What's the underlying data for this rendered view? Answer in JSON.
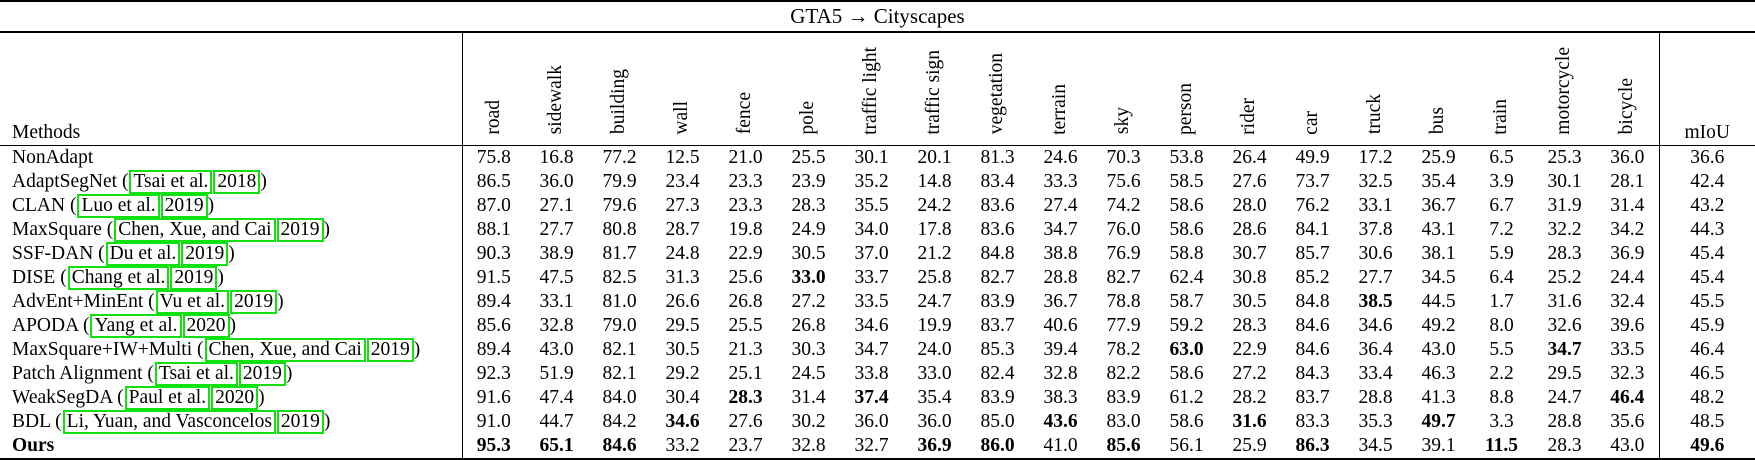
{
  "title": "GTA5 → Cityscapes",
  "colors": {
    "link_box": "#11e011"
  },
  "table": {
    "methods_header": "Methods",
    "miou_header": "mIoU",
    "class_headers": [
      "road",
      "sidewalk",
      "building",
      "wall",
      "fence",
      "pole",
      "traffic light",
      "traffic sign",
      "vegetation",
      "terrain",
      "sky",
      "person",
      "rider",
      "car",
      "truck",
      "bus",
      "train",
      "motorcycle",
      "bicycle"
    ],
    "rows": [
      {
        "method": {
          "name": "NonAdapt"
        },
        "values": [
          "75.8",
          "16.8",
          "77.2",
          "12.5",
          "21.0",
          "25.5",
          "30.1",
          "20.1",
          "81.3",
          "24.6",
          "70.3",
          "53.8",
          "26.4",
          "49.9",
          "17.2",
          "25.9",
          "6.5",
          "25.3",
          "36.0"
        ],
        "bold": [],
        "miou": "36.6",
        "miou_bold": false
      },
      {
        "method": {
          "name": "AdaptSegNet",
          "cite": "Tsai et al.",
          "year": "2018"
        },
        "values": [
          "86.5",
          "36.0",
          "79.9",
          "23.4",
          "23.3",
          "23.9",
          "35.2",
          "14.8",
          "83.4",
          "33.3",
          "75.6",
          "58.5",
          "27.6",
          "73.7",
          "32.5",
          "35.4",
          "3.9",
          "30.1",
          "28.1"
        ],
        "bold": [],
        "miou": "42.4",
        "miou_bold": false
      },
      {
        "method": {
          "name": "CLAN",
          "cite": "Luo et al.",
          "year": "2019"
        },
        "values": [
          "87.0",
          "27.1",
          "79.6",
          "27.3",
          "23.3",
          "28.3",
          "35.5",
          "24.2",
          "83.6",
          "27.4",
          "74.2",
          "58.6",
          "28.0",
          "76.2",
          "33.1",
          "36.7",
          "6.7",
          "31.9",
          "31.4"
        ],
        "bold": [],
        "miou": "43.2",
        "miou_bold": false
      },
      {
        "method": {
          "name": "MaxSquare",
          "cite": "Chen, Xue, and Cai",
          "year": "2019"
        },
        "values": [
          "88.1",
          "27.7",
          "80.8",
          "28.7",
          "19.8",
          "24.9",
          "34.0",
          "17.8",
          "83.6",
          "34.7",
          "76.0",
          "58.6",
          "28.6",
          "84.1",
          "37.8",
          "43.1",
          "7.2",
          "32.2",
          "34.2"
        ],
        "bold": [],
        "miou": "44.3",
        "miou_bold": false
      },
      {
        "method": {
          "name": "SSF-DAN",
          "cite": "Du et al.",
          "year": "2019"
        },
        "values": [
          "90.3",
          "38.9",
          "81.7",
          "24.8",
          "22.9",
          "30.5",
          "37.0",
          "21.2",
          "84.8",
          "38.8",
          "76.9",
          "58.8",
          "30.7",
          "85.7",
          "30.6",
          "38.1",
          "5.9",
          "28.3",
          "36.9"
        ],
        "bold": [],
        "miou": "45.4",
        "miou_bold": false
      },
      {
        "method": {
          "name": "DISE",
          "cite": "Chang et al.",
          "year": "2019"
        },
        "values": [
          "91.5",
          "47.5",
          "82.5",
          "31.3",
          "25.6",
          "33.0",
          "33.7",
          "25.8",
          "82.7",
          "28.8",
          "82.7",
          "62.4",
          "30.8",
          "85.2",
          "27.7",
          "34.5",
          "6.4",
          "25.2",
          "24.4"
        ],
        "bold": [
          5
        ],
        "miou": "45.4",
        "miou_bold": false
      },
      {
        "method": {
          "name": "AdvEnt+MinEnt",
          "cite": "Vu et al.",
          "year": "2019"
        },
        "values": [
          "89.4",
          "33.1",
          "81.0",
          "26.6",
          "26.8",
          "27.2",
          "33.5",
          "24.7",
          "83.9",
          "36.7",
          "78.8",
          "58.7",
          "30.5",
          "84.8",
          "38.5",
          "44.5",
          "1.7",
          "31.6",
          "32.4"
        ],
        "bold": [
          14
        ],
        "miou": "45.5",
        "miou_bold": false
      },
      {
        "method": {
          "name": "APODA",
          "cite": "Yang et al.",
          "year": "2020"
        },
        "values": [
          "85.6",
          "32.8",
          "79.0",
          "29.5",
          "25.5",
          "26.8",
          "34.6",
          "19.9",
          "83.7",
          "40.6",
          "77.9",
          "59.2",
          "28.3",
          "84.6",
          "34.6",
          "49.2",
          "8.0",
          "32.6",
          "39.6"
        ],
        "bold": [],
        "miou": "45.9",
        "miou_bold": false
      },
      {
        "method": {
          "name": "MaxSquare+IW+Multi",
          "cite": "Chen, Xue, and Cai",
          "year": "2019"
        },
        "values": [
          "89.4",
          "43.0",
          "82.1",
          "30.5",
          "21.3",
          "30.3",
          "34.7",
          "24.0",
          "85.3",
          "39.4",
          "78.2",
          "63.0",
          "22.9",
          "84.6",
          "36.4",
          "43.0",
          "5.5",
          "34.7",
          "33.5"
        ],
        "bold": [
          11,
          17
        ],
        "miou": "46.4",
        "miou_bold": false
      },
      {
        "method": {
          "name": "Patch Alignment",
          "cite": "Tsai et al.",
          "year": "2019"
        },
        "values": [
          "92.3",
          "51.9",
          "82.1",
          "29.2",
          "25.1",
          "24.5",
          "33.8",
          "33.0",
          "82.4",
          "32.8",
          "82.2",
          "58.6",
          "27.2",
          "84.3",
          "33.4",
          "46.3",
          "2.2",
          "29.5",
          "32.3"
        ],
        "bold": [],
        "miou": "46.5",
        "miou_bold": false
      },
      {
        "method": {
          "name": "WeakSegDA",
          "cite": "Paul et al.",
          "year": "2020"
        },
        "values": [
          "91.6",
          "47.4",
          "84.0",
          "30.4",
          "28.3",
          "31.4",
          "37.4",
          "35.4",
          "83.9",
          "38.3",
          "83.9",
          "61.2",
          "28.2",
          "83.7",
          "28.8",
          "41.3",
          "8.8",
          "24.7",
          "46.4"
        ],
        "bold": [
          4,
          6,
          18
        ],
        "miou": "48.2",
        "miou_bold": false
      },
      {
        "method": {
          "name": "BDL",
          "cite": "Li, Yuan, and Vasconcelos",
          "year": "2019"
        },
        "values": [
          "91.0",
          "44.7",
          "84.2",
          "34.6",
          "27.6",
          "30.2",
          "36.0",
          "36.0",
          "85.0",
          "43.6",
          "83.0",
          "58.6",
          "31.6",
          "83.3",
          "35.3",
          "49.7",
          "3.3",
          "28.8",
          "35.6"
        ],
        "bold": [
          3,
          9,
          12,
          15
        ],
        "miou": "48.5",
        "miou_bold": false
      },
      {
        "method": {
          "name": "Ours",
          "bold": true
        },
        "values": [
          "95.3",
          "65.1",
          "84.6",
          "33.2",
          "23.7",
          "32.8",
          "32.7",
          "36.9",
          "86.0",
          "41.0",
          "85.6",
          "56.1",
          "25.9",
          "86.3",
          "34.5",
          "39.1",
          "11.5",
          "28.3",
          "43.0"
        ],
        "bold": [
          0,
          1,
          2,
          7,
          8,
          10,
          13,
          16
        ],
        "miou": "49.6",
        "miou_bold": true
      }
    ]
  }
}
